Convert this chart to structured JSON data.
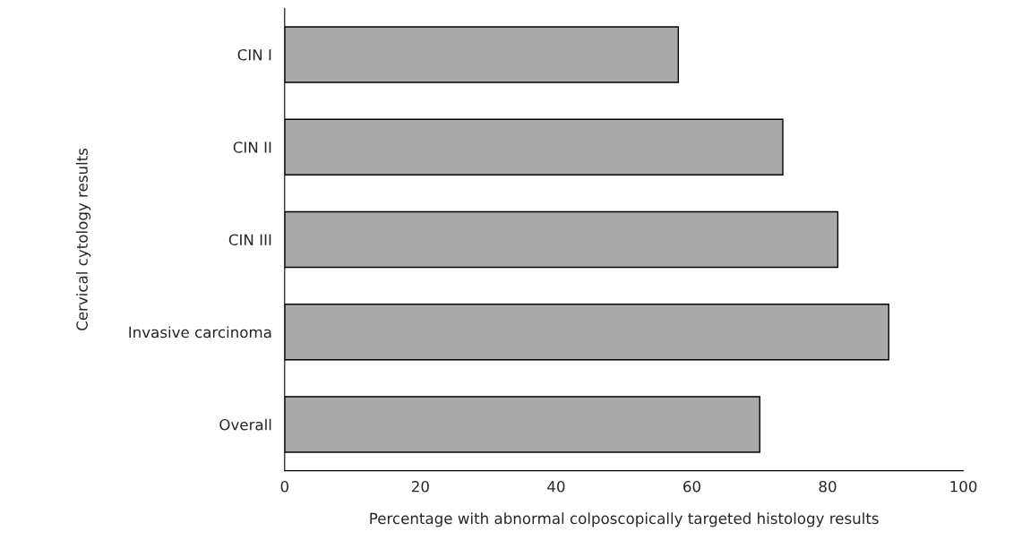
{
  "chart_data": {
    "type": "bar",
    "orientation": "horizontal",
    "categories": [
      "CIN I",
      "CIN II",
      "CIN III",
      "Invasive carcinoma",
      "Overall"
    ],
    "values": [
      58,
      73.4,
      81.5,
      89,
      70
    ],
    "color": "#a9a9a9",
    "xlim": [
      0,
      100
    ],
    "xticks": [
      0,
      20,
      40,
      60,
      80,
      100
    ],
    "xlabel": "Percentage with abnormal colposcopically targeted histology results",
    "ylabel": "Cervical cytology results",
    "grid": false,
    "legend": false
  }
}
